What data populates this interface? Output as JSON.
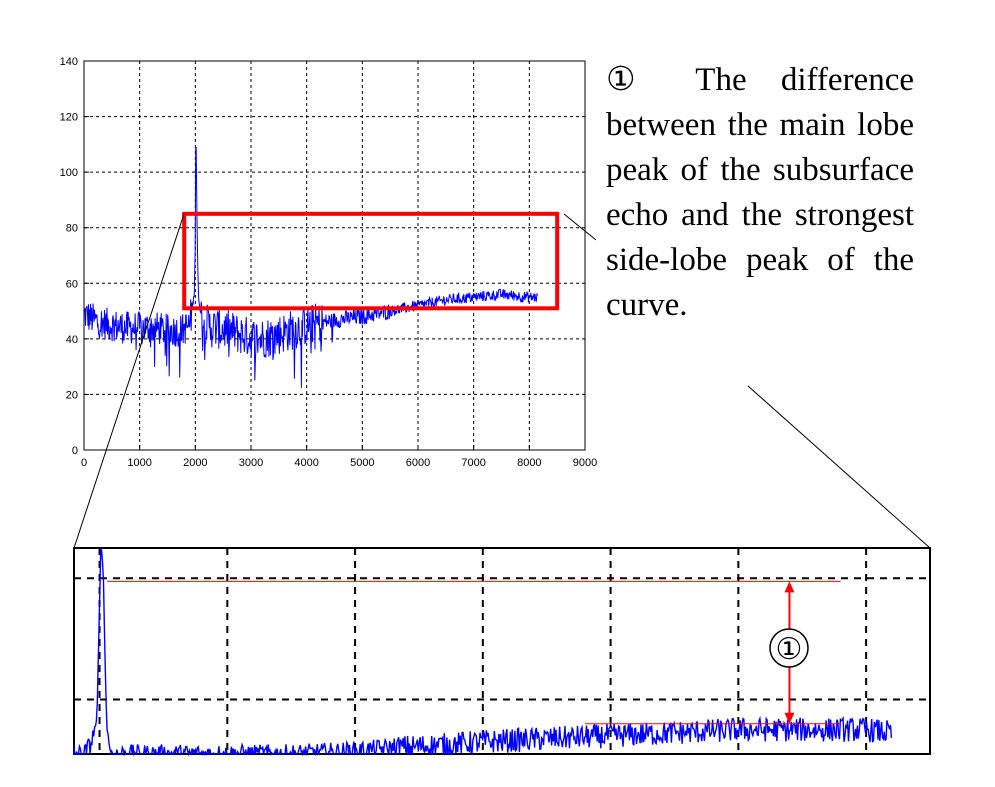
{
  "chart_data": [
    {
      "type": "line",
      "xlim": [
        0,
        9000
      ],
      "ylim": [
        0,
        140
      ],
      "x_ticks": [
        "0",
        "1000",
        "2000",
        "3000",
        "4000",
        "5000",
        "6000",
        "7000",
        "8000",
        "9000"
      ],
      "y_ticks": [
        "0",
        "20",
        "40",
        "60",
        "80",
        "100",
        "120",
        "140"
      ],
      "grid": true,
      "series_color": "#0000ff",
      "highlight_box": {
        "x": [
          1800,
          8500
        ],
        "y": [
          51,
          85
        ],
        "color": "#ff0000"
      },
      "series": [
        {
          "x": [
            0,
            250,
            500,
            750,
            1000,
            1250,
            1500,
            1750,
            1900,
            1980,
            2000,
            2010,
            2020,
            2030,
            2040,
            2050,
            2060,
            2080,
            2100,
            2150,
            2300,
            2600,
            2900,
            3100,
            3400,
            3700,
            4000,
            4300,
            4600,
            5000,
            5500,
            6000,
            6500,
            7000,
            7500,
            8000,
            8150
          ],
          "y": [
            49,
            46,
            45,
            44,
            44,
            44,
            43,
            43,
            45,
            56,
            75,
            123,
            100,
            84,
            70,
            60,
            55,
            52,
            49,
            46,
            44,
            43,
            41,
            40,
            41,
            43,
            45,
            46,
            47,
            48,
            50,
            52,
            54,
            55,
            56,
            55,
            55
          ]
        }
      ]
    },
    {
      "type": "line",
      "xlim": [
        1800,
        8500
      ],
      "ylim": [
        51,
        85
      ],
      "grid": true,
      "series_color": "#0000ff",
      "annotation_color": "#ff0000",
      "main_lobe_peak": 79.5,
      "side_lobe_peak": 56,
      "series": [
        {
          "x": [
            1800,
            1880,
            1940,
            1980,
            2000,
            2010,
            2020,
            2030,
            2040,
            2050,
            2060,
            2080,
            2100,
            2150,
            2300,
            2600,
            3000,
            3500,
            4000,
            4300,
            4700,
            5000,
            5500,
            6000,
            6500,
            7000,
            7400,
            7700,
            8000,
            8200
          ],
          "y": [
            51,
            51,
            53,
            57,
            75,
            85,
            85,
            80,
            70,
            60,
            55,
            52,
            51,
            51,
            51,
            51,
            51,
            51,
            51.5,
            52,
            52.5,
            53,
            53.5,
            54,
            54.5,
            55,
            55,
            55,
            55,
            54.5
          ]
        }
      ]
    }
  ],
  "annotation": {
    "marker": "①",
    "text": "① The difference between the main lobe peak of the subsurface echo and the strongest side-lobe peak of the curve."
  }
}
